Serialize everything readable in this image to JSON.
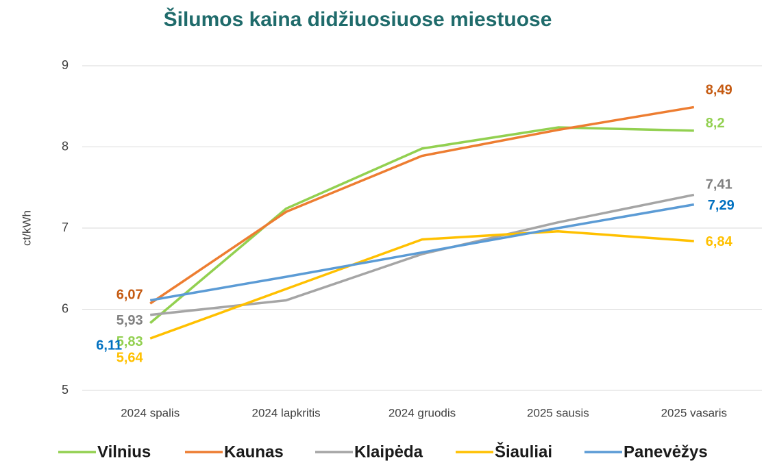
{
  "chart_data": {
    "type": "line",
    "title": "Šilumos kaina didžiuosiuose miestuose",
    "y_label": "ct/kWh",
    "categories": [
      "2024 spalis",
      "2024 lapkritis",
      "2024 gruodis",
      "2025 sausis",
      "2025 vasaris"
    ],
    "ylim": [
      5,
      9
    ],
    "yticks": [
      5,
      6,
      7,
      8,
      9
    ],
    "grid": true,
    "legend": "bottom",
    "series": [
      {
        "name": "Vilnius",
        "color": "#92d050",
        "label_color": "#92d050",
        "values": [
          5.83,
          7.24,
          7.98,
          8.24,
          8.2
        ],
        "value_labels": [
          "5,83",
          null,
          null,
          null,
          "8,2"
        ]
      },
      {
        "name": "Kaunas",
        "color": "#ed7d31",
        "label_color": "#c55a11",
        "values": [
          6.07,
          7.2,
          7.89,
          8.21,
          8.49
        ],
        "value_labels": [
          "6,07",
          null,
          null,
          null,
          "8,49"
        ]
      },
      {
        "name": "Klaipėda",
        "color": "#a5a5a5",
        "label_color": "#808080",
        "values": [
          5.93,
          6.11,
          6.68,
          7.07,
          7.41
        ],
        "value_labels": [
          "5,93",
          null,
          null,
          null,
          "7,41"
        ]
      },
      {
        "name": "Šiauliai",
        "color": "#ffc000",
        "label_color": "#ffc000",
        "values": [
          5.64,
          6.25,
          6.86,
          6.96,
          6.84
        ],
        "value_labels": [
          "5,64",
          null,
          null,
          null,
          "6,84"
        ]
      },
      {
        "name": "Panevėžys",
        "color": "#5b9bd5",
        "label_color": "#0070c0",
        "values": [
          6.11,
          6.4,
          6.7,
          7.0,
          7.29
        ],
        "value_labels": [
          "6,11",
          null,
          null,
          null,
          "7,29"
        ]
      }
    ]
  }
}
